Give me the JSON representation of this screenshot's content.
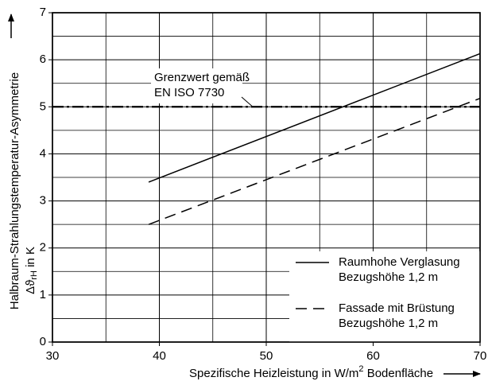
{
  "chart_data": {
    "type": "line",
    "xlabel": [
      "Spezifische Heizleistung in W/m",
      "2",
      " Bodenfläche"
    ],
    "ylabel": [
      "Halbraum-Strahlungstemperatur-Asymmetrie",
      "Δϑ",
      "rH",
      " in K"
    ],
    "xlim": [
      30,
      70
    ],
    "xticks": [
      30,
      40,
      50,
      60,
      70
    ],
    "x_minor_grid": [
      35,
      45,
      55,
      65
    ],
    "ylim": [
      0,
      7
    ],
    "yticks": [
      0,
      1,
      2,
      3,
      4,
      5,
      6,
      7
    ],
    "y_minor_grid": [
      0.5,
      1.5,
      2.5,
      3.5,
      4.5,
      5.5,
      6.5
    ],
    "grid": true,
    "legend": "lower right",
    "series": [
      {
        "name": "Raumhohe Verglasung",
        "legend_sub": "Bezugshöhe 1,2 m",
        "color": "#000000",
        "dash": "solid",
        "x": [
          39,
          70
        ],
        "values": [
          3.4,
          6.13
        ]
      },
      {
        "name": "Fassade mit Brüstung",
        "legend_sub": "Bezugshöhe 1,2 m",
        "color": "#000000",
        "dash": "dashed",
        "x": [
          39,
          70
        ],
        "values": [
          2.5,
          5.18
        ]
      }
    ],
    "reference_line": {
      "y": 5,
      "label": [
        "Grenzwert gemäß",
        "EN ISO 7730"
      ]
    }
  }
}
